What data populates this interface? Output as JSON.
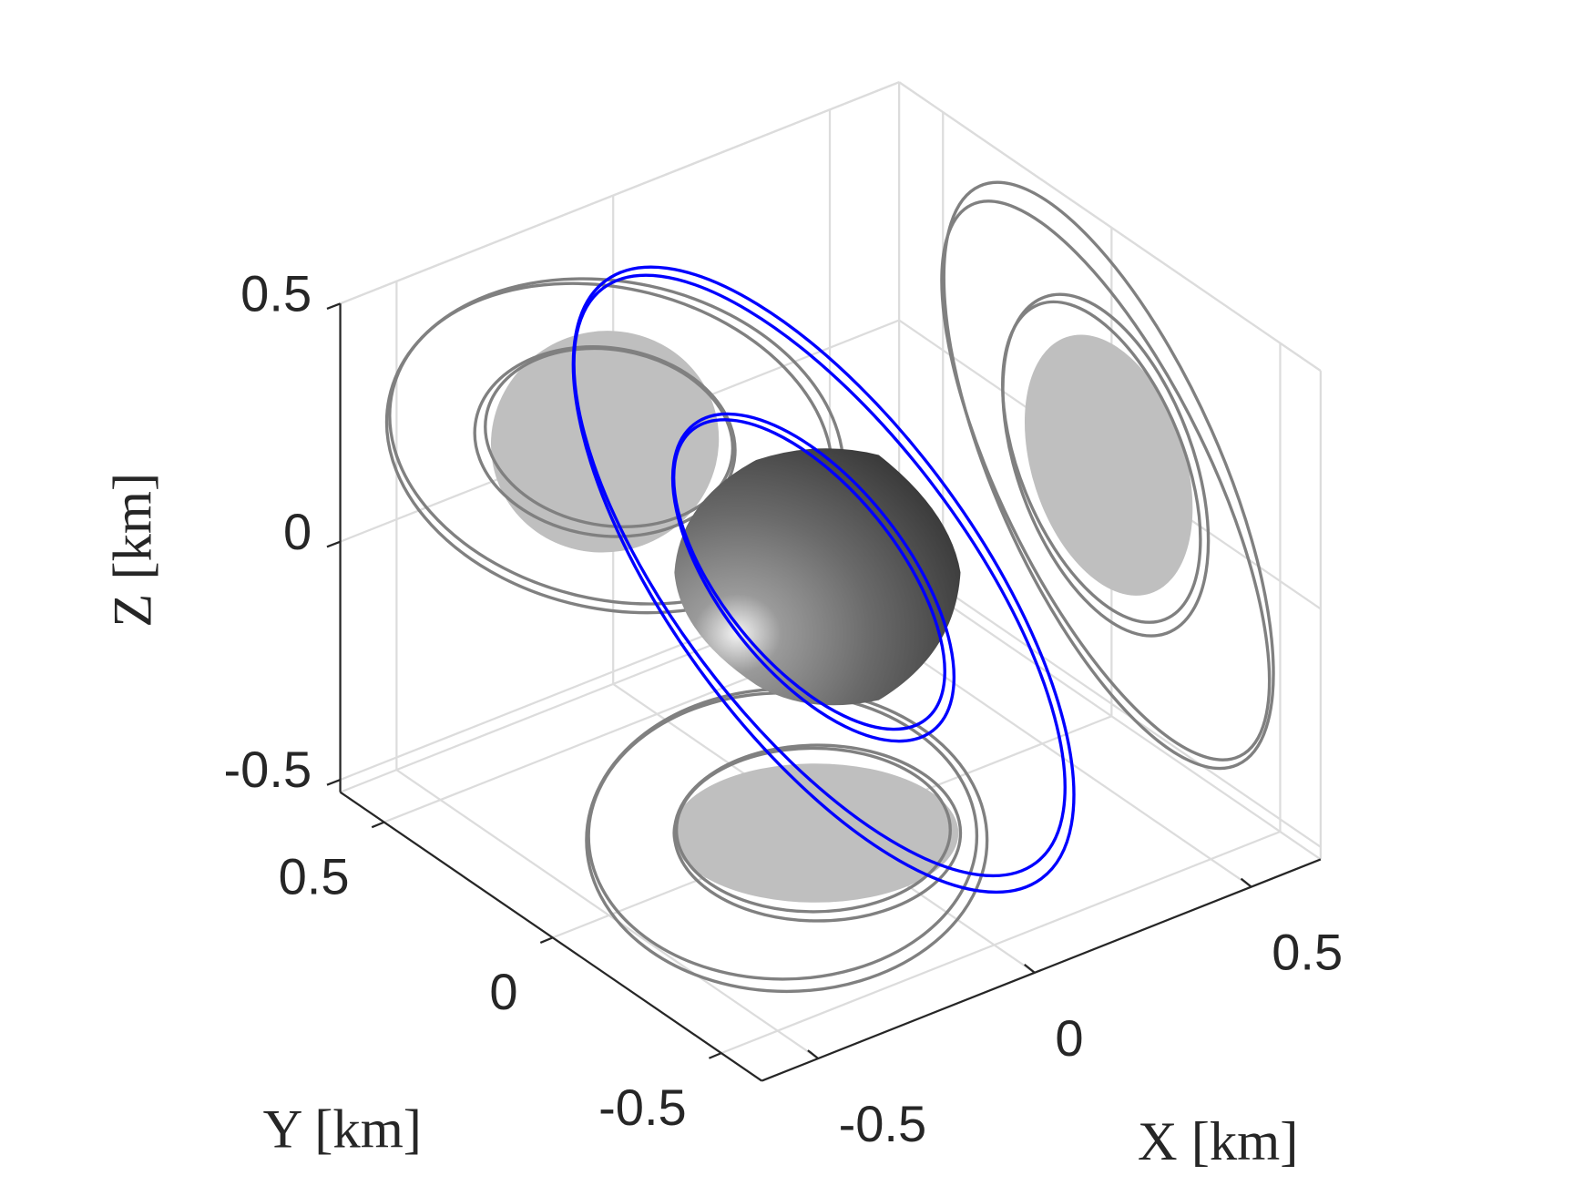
{
  "chart_data": {
    "type": "line3d",
    "xlabel": "X [km]",
    "ylabel": "Y [km]",
    "zlabel": "Z [km]",
    "xlim": [
      -0.63,
      0.66
    ],
    "ylim": [
      -0.62,
      0.63
    ],
    "zlim": [
      -0.526,
      0.5
    ],
    "xticks": [
      -0.5,
      0,
      0.5
    ],
    "yticks": [
      -0.5,
      0,
      0.5
    ],
    "zticks": [
      -0.5,
      0,
      0.5
    ],
    "grid": true
  }
}
